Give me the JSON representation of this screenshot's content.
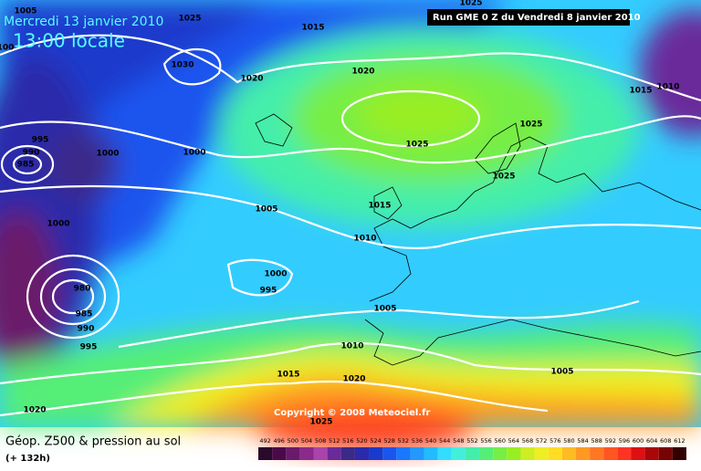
{
  "header": {
    "date": "Mercredi 13 janvier 2010",
    "time": "13:00 locale",
    "run": "Run GME 0 Z du Vendredi 8 janvier 2010"
  },
  "copyright": "Copyright © 2008 Meteociel.fr",
  "footer": {
    "title": "Géop. Z500 & pression au sol",
    "lead": "(+ 132h)"
  },
  "isobar_labels": [
    "1005",
    "1025",
    "1015",
    "1030",
    "1020",
    "1020",
    "100",
    "1015",
    "1010",
    "1025",
    "1025",
    "1025",
    "995",
    "990",
    "985",
    "1000",
    "1000",
    "1005",
    "1015",
    "1010",
    "1000",
    "1000",
    "995",
    "980",
    "985",
    "990",
    "995",
    "1005",
    "1010",
    "1015",
    "1020",
    "1005",
    "1020",
    "1025",
    "1025"
  ],
  "scale": {
    "labels": [
      492,
      496,
      500,
      504,
      508,
      512,
      516,
      520,
      524,
      528,
      532,
      536,
      540,
      544,
      548,
      552,
      556,
      560,
      564,
      568,
      572,
      576,
      580,
      584,
      588,
      592,
      596,
      600,
      604,
      608,
      612
    ],
    "colors": [
      "#2a0a2a",
      "#4a0a4a",
      "#6a1a6a",
      "#8a2a8a",
      "#aa44aa",
      "#6a2a9a",
      "#3a2a8a",
      "#2a2aaa",
      "#1a3acc",
      "#1a55ee",
      "#1a77ff",
      "#2299ff",
      "#22bbff",
      "#33ddff",
      "#44eedd",
      "#44eeaa",
      "#55ee77",
      "#77ee44",
      "#99ee22",
      "#ccee22",
      "#eeee22",
      "#ffdd22",
      "#ffbb22",
      "#ff9922",
      "#ff7722",
      "#ff5522",
      "#ff3322",
      "#dd1111",
      "#aa0808",
      "#770404",
      "#330000"
    ]
  }
}
